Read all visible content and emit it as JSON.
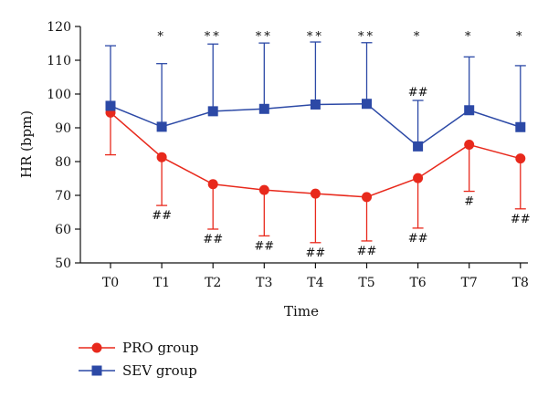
{
  "chart_data": {
    "type": "line",
    "xlabel": "Time",
    "ylabel": "HR (bpm)",
    "ylim": [
      50,
      120
    ],
    "yticks": [
      50,
      60,
      70,
      80,
      90,
      100,
      110,
      120
    ],
    "categories": [
      "T0",
      "T1",
      "T2",
      "T3",
      "T4",
      "T5",
      "T6",
      "T7",
      "T8"
    ],
    "grid": false,
    "legend_position": "bottom-left",
    "series": [
      {
        "name": "PRO group",
        "color": "#e8291c",
        "marker": "circle",
        "values": [
          94.5,
          81.3,
          73.3,
          71.6,
          70.5,
          69.5,
          75.1,
          85.0,
          80.9
        ],
        "error_lower": [
          82,
          67,
          60,
          58,
          56,
          56.5,
          60.3,
          71.2,
          66
        ],
        "annotations_below": [
          "",
          "##",
          "##",
          "##",
          "##",
          "##",
          "##",
          "#",
          "##"
        ]
      },
      {
        "name": "SEV group",
        "color": "#2c49a6",
        "marker": "square",
        "values": [
          96.5,
          90.3,
          94.9,
          95.6,
          96.9,
          97.1,
          84.5,
          95.2,
          90.2
        ],
        "error_upper": [
          114.3,
          109,
          114.8,
          115.1,
          115.4,
          115.2,
          98.1,
          111,
          108.4
        ],
        "annotations_above": [
          "",
          "*",
          "**",
          "**",
          "**",
          "**",
          "*",
          "*",
          "*"
        ],
        "annotations_near_marker": [
          "",
          "",
          "",
          "",
          "",
          "",
          "##",
          "",
          ""
        ]
      }
    ]
  }
}
